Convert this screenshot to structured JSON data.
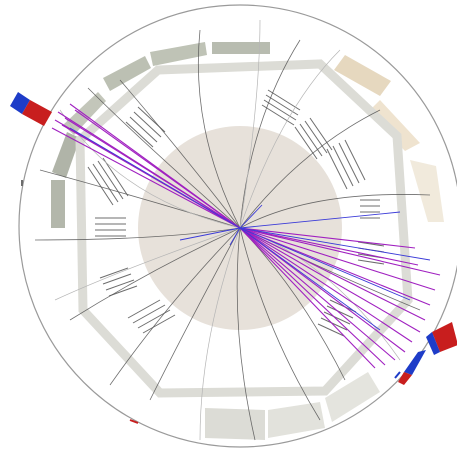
{
  "scene": {
    "kind": "particle-collision-event-display",
    "colors": {
      "background": "#ffffff",
      "outer_ring": "#9a9a9a",
      "calorimeter_gray": "#b4b8ac",
      "calorimeter_light": "#d6d6d0",
      "muon_ring": "#dcdcd6",
      "inner_core": "#e7e1da",
      "highlight_cream": "#efe3cf",
      "detector_lines": "#6d6d6d",
      "track_gray": "#555555",
      "track_purple": "#a020c0",
      "track_blue": "#3b3bd8",
      "deposit_red": "#c81e1e",
      "deposit_blue": "#1e3cc8"
    }
  }
}
